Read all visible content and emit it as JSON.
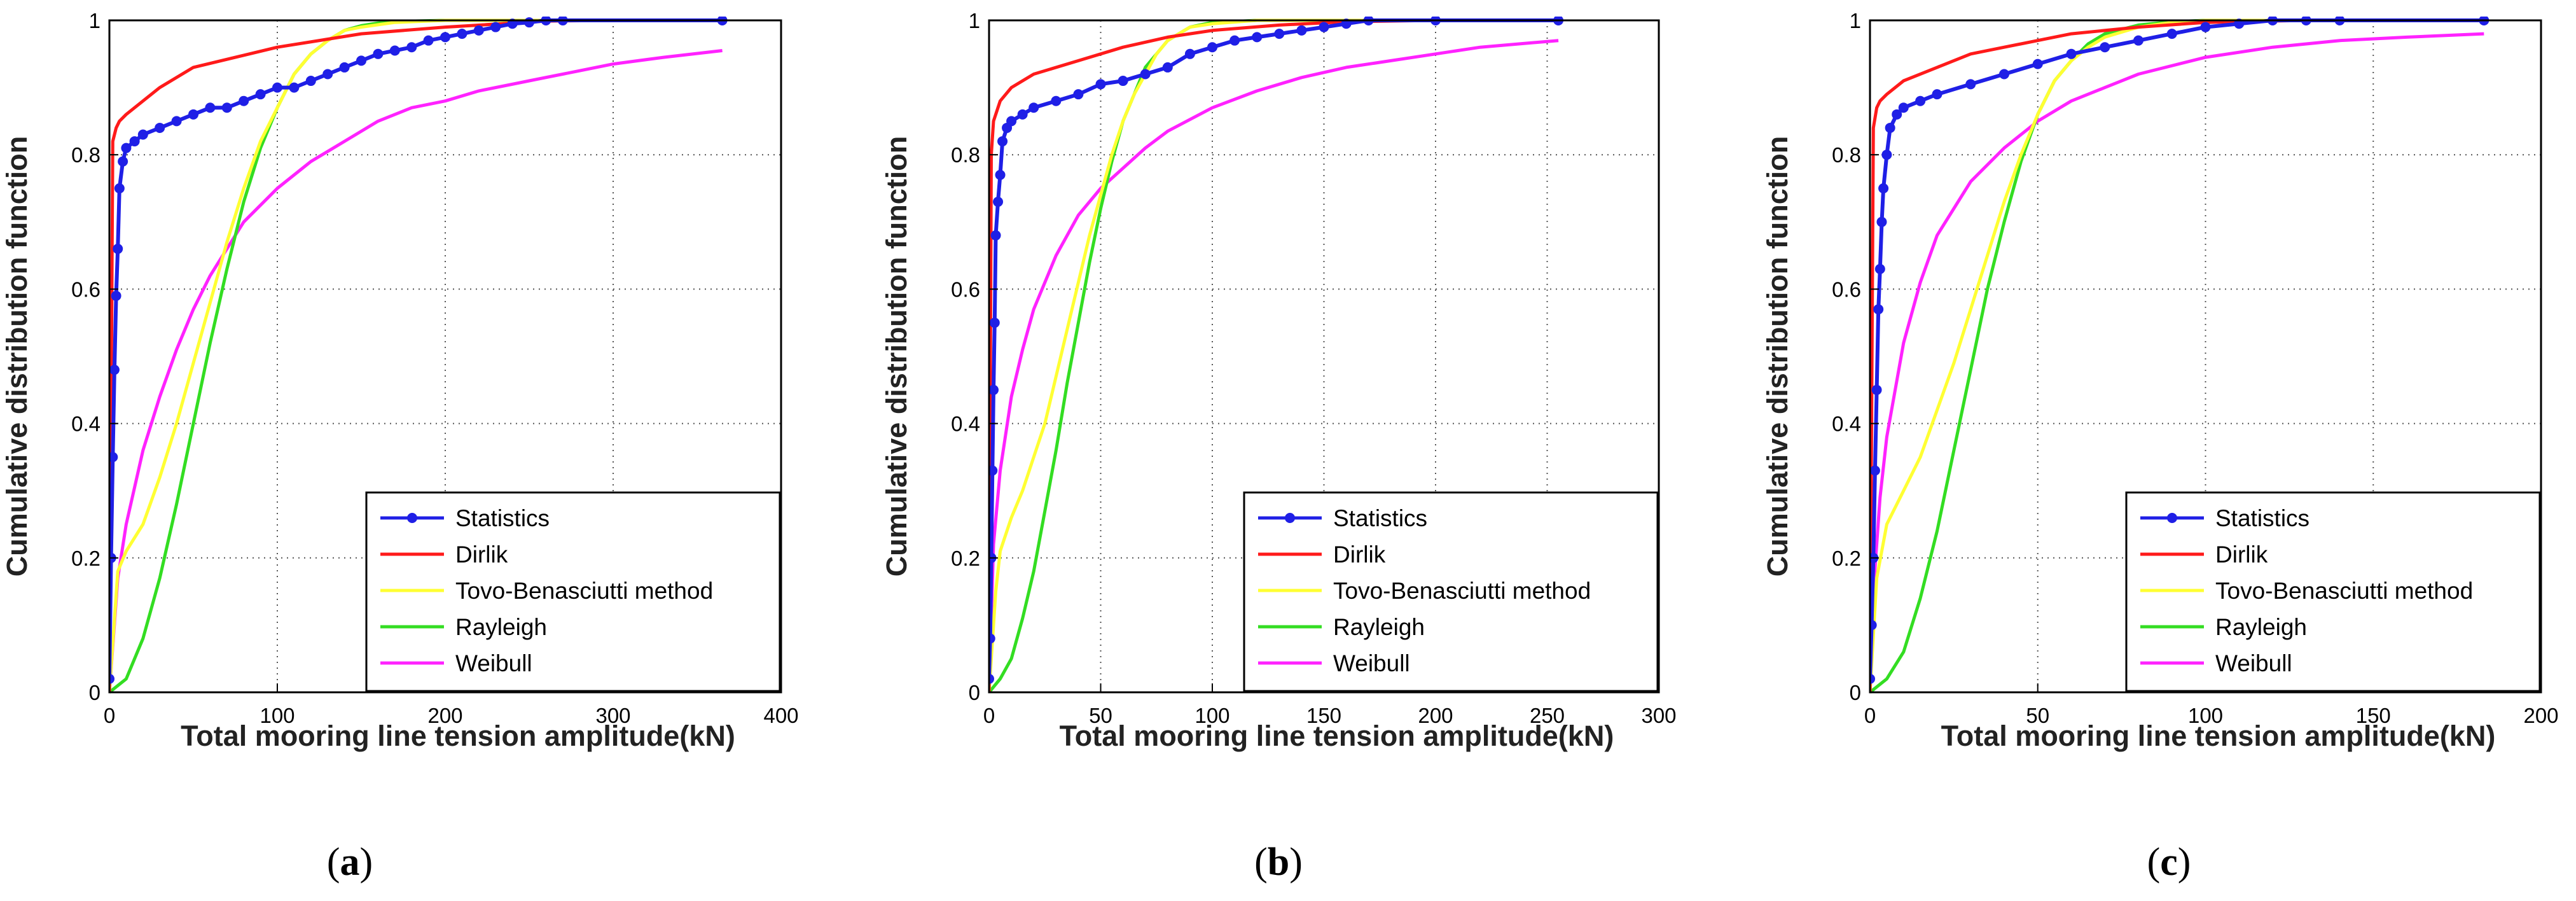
{
  "colors": {
    "Statistics": "#1f1fe6",
    "Dirlik": "#ff1a1a",
    "Tovo-Benasciutti method": "#ffff33",
    "Rayleigh": "#33dd22",
    "Weibull": "#ff22ff"
  },
  "chart_data": [
    {
      "type": "line",
      "caption_letter": "a",
      "xlabel": "Total mooring line tension amplitude(kN)",
      "ylabel": "Cumulative distribution function",
      "xlim": [
        0,
        400
      ],
      "ylim": [
        0,
        1
      ],
      "xticks": [
        0,
        100,
        200,
        300,
        400
      ],
      "yticks": [
        0,
        0.2,
        0.4,
        0.6,
        0.8,
        1
      ],
      "ytick_labels": [
        "0",
        "0.2",
        "0.4",
        "0.6",
        "0.8",
        "1"
      ],
      "grid": true,
      "legend_position": "bottom-right",
      "legend": [
        "Statistics",
        "Dirlik",
        "Tovo-Benasciutti method",
        "Rayleigh",
        "Weibull"
      ],
      "series": [
        {
          "name": "Statistics",
          "marker": true,
          "x": [
            0,
            1,
            2,
            3,
            4,
            5,
            6,
            8,
            10,
            15,
            20,
            30,
            40,
            50,
            60,
            70,
            80,
            90,
            100,
            110,
            120,
            130,
            140,
            150,
            160,
            170,
            180,
            190,
            200,
            210,
            220,
            230,
            240,
            250,
            260,
            270,
            365
          ],
          "y": [
            0.02,
            0.2,
            0.35,
            0.48,
            0.59,
            0.66,
            0.75,
            0.79,
            0.81,
            0.82,
            0.83,
            0.84,
            0.85,
            0.86,
            0.87,
            0.87,
            0.88,
            0.89,
            0.9,
            0.9,
            0.91,
            0.92,
            0.93,
            0.94,
            0.95,
            0.955,
            0.96,
            0.97,
            0.975,
            0.98,
            0.985,
            0.99,
            0.995,
            0.997,
            1.0,
            1.0,
            1.0
          ]
        },
        {
          "name": "Dirlik",
          "x": [
            0,
            2,
            4,
            6,
            10,
            20,
            30,
            50,
            75,
            100,
            150,
            200,
            260,
            300,
            365
          ],
          "y": [
            0,
            0.82,
            0.84,
            0.85,
            0.86,
            0.88,
            0.9,
            0.93,
            0.945,
            0.96,
            0.98,
            0.99,
            0.999,
            1.0,
            1.0
          ]
        },
        {
          "name": "Tovo-Benasciutti method",
          "x": [
            0,
            5,
            10,
            20,
            30,
            40,
            50,
            60,
            70,
            80,
            90,
            100,
            110,
            120,
            130,
            140,
            150,
            170,
            200,
            250,
            365
          ],
          "y": [
            0,
            0.18,
            0.21,
            0.25,
            0.32,
            0.4,
            0.49,
            0.58,
            0.67,
            0.75,
            0.82,
            0.87,
            0.92,
            0.95,
            0.97,
            0.985,
            0.99,
            0.997,
            1.0,
            1.0,
            1.0
          ]
        },
        {
          "name": "Rayleigh",
          "x": [
            0,
            10,
            20,
            30,
            40,
            50,
            60,
            70,
            80,
            90,
            100,
            110,
            120,
            130,
            140,
            150,
            160,
            170,
            180,
            200,
            250,
            365
          ],
          "y": [
            0,
            0.02,
            0.08,
            0.17,
            0.28,
            0.4,
            0.52,
            0.63,
            0.73,
            0.81,
            0.87,
            0.92,
            0.95,
            0.97,
            0.985,
            0.992,
            0.996,
            0.998,
            0.999,
            1.0,
            1.0,
            1.0
          ]
        },
        {
          "name": "Weibull",
          "x": [
            0,
            5,
            10,
            20,
            30,
            40,
            50,
            60,
            70,
            80,
            100,
            120,
            140,
            160,
            180,
            200,
            220,
            250,
            280,
            300,
            330,
            365
          ],
          "y": [
            0,
            0.17,
            0.25,
            0.36,
            0.44,
            0.51,
            0.57,
            0.62,
            0.66,
            0.7,
            0.75,
            0.79,
            0.82,
            0.85,
            0.87,
            0.88,
            0.895,
            0.91,
            0.925,
            0.935,
            0.945,
            0.955
          ]
        }
      ]
    },
    {
      "type": "line",
      "caption_letter": "b",
      "xlabel": "Total mooring line tension amplitude(kN)",
      "ylabel": "Cumulative distribution function",
      "xlim": [
        0,
        300
      ],
      "ylim": [
        0,
        1
      ],
      "xticks": [
        0,
        50,
        100,
        150,
        200,
        250,
        300
      ],
      "yticks": [
        0,
        0.2,
        0.4,
        0.6,
        0.8,
        1
      ],
      "ytick_labels": [
        "0",
        "0.2",
        "0.4",
        "0.6",
        "0.8",
        "1"
      ],
      "grid": true,
      "legend_position": "bottom-right",
      "legend": [
        "Statistics",
        "Dirlik",
        "Tovo-Benasciutti method",
        "Rayleigh",
        "Weibull"
      ],
      "series": [
        {
          "name": "Statistics",
          "marker": true,
          "x": [
            0,
            0.5,
            1,
            1.5,
            2,
            2.5,
            3,
            4,
            5,
            6,
            8,
            10,
            15,
            20,
            30,
            40,
            50,
            60,
            70,
            80,
            90,
            100,
            110,
            120,
            130,
            140,
            150,
            160,
            170,
            200,
            255
          ],
          "y": [
            0.02,
            0.08,
            0.2,
            0.33,
            0.45,
            0.55,
            0.68,
            0.73,
            0.77,
            0.82,
            0.84,
            0.85,
            0.86,
            0.87,
            0.88,
            0.89,
            0.905,
            0.91,
            0.92,
            0.93,
            0.95,
            0.96,
            0.97,
            0.975,
            0.98,
            0.985,
            0.99,
            0.995,
            1.0,
            1.0,
            1.0
          ]
        },
        {
          "name": "Dirlik",
          "x": [
            0,
            1,
            2,
            3,
            5,
            10,
            20,
            40,
            60,
            80,
            100,
            130,
            160,
            200,
            255
          ],
          "y": [
            0,
            0.8,
            0.85,
            0.86,
            0.88,
            0.9,
            0.92,
            0.94,
            0.96,
            0.975,
            0.985,
            0.993,
            0.998,
            1.0,
            1.0
          ]
        },
        {
          "name": "Tovo-Benasciutti method",
          "x": [
            0,
            3,
            5,
            10,
            15,
            20,
            25,
            30,
            35,
            40,
            45,
            50,
            55,
            60,
            65,
            70,
            75,
            80,
            85,
            90,
            100,
            120,
            150,
            255
          ],
          "y": [
            0,
            0.15,
            0.21,
            0.26,
            0.3,
            0.35,
            0.4,
            0.47,
            0.54,
            0.61,
            0.68,
            0.74,
            0.8,
            0.85,
            0.89,
            0.92,
            0.95,
            0.97,
            0.98,
            0.99,
            0.995,
            1.0,
            1.0,
            1.0
          ]
        },
        {
          "name": "Rayleigh",
          "x": [
            0,
            5,
            10,
            15,
            20,
            25,
            30,
            35,
            40,
            45,
            50,
            55,
            60,
            65,
            70,
            75,
            80,
            85,
            90,
            100,
            120,
            150,
            255
          ],
          "y": [
            0,
            0.02,
            0.05,
            0.11,
            0.18,
            0.27,
            0.36,
            0.46,
            0.55,
            0.64,
            0.72,
            0.79,
            0.85,
            0.89,
            0.93,
            0.95,
            0.97,
            0.98,
            0.99,
            0.997,
            1.0,
            1.0,
            1.0
          ]
        },
        {
          "name": "Weibull",
          "x": [
            0,
            2,
            5,
            10,
            15,
            20,
            30,
            40,
            50,
            60,
            70,
            80,
            100,
            120,
            140,
            160,
            180,
            200,
            220,
            255
          ],
          "y": [
            0,
            0.22,
            0.33,
            0.44,
            0.51,
            0.57,
            0.65,
            0.71,
            0.75,
            0.78,
            0.81,
            0.835,
            0.87,
            0.895,
            0.915,
            0.93,
            0.94,
            0.95,
            0.96,
            0.97
          ]
        }
      ]
    },
    {
      "type": "line",
      "caption_letter": "c",
      "xlabel": "Total mooring line tension amplitude(kN)",
      "ylabel": "Cumulative distribution function",
      "xlim": [
        0,
        200
      ],
      "ylim": [
        0,
        1
      ],
      "xticks": [
        0,
        50,
        100,
        150,
        200
      ],
      "yticks": [
        0,
        0.2,
        0.4,
        0.6,
        0.8,
        1
      ],
      "ytick_labels": [
        "0",
        "0.2",
        "0.4",
        "0.6",
        "0.8",
        "1"
      ],
      "grid": true,
      "legend_position": "bottom-right",
      "legend": [
        "Statistics",
        "Dirlik",
        "Tovo-Benasciutti method",
        "Rayleigh",
        "Weibull"
      ],
      "series": [
        {
          "name": "Statistics",
          "marker": true,
          "x": [
            0,
            0.5,
            1,
            1.5,
            2,
            2.5,
            3,
            3.5,
            4,
            5,
            6,
            8,
            10,
            15,
            20,
            30,
            40,
            50,
            60,
            70,
            80,
            90,
            100,
            110,
            120,
            130,
            140,
            183
          ],
          "y": [
            0.02,
            0.1,
            0.2,
            0.33,
            0.45,
            0.57,
            0.63,
            0.7,
            0.75,
            0.8,
            0.84,
            0.86,
            0.87,
            0.88,
            0.89,
            0.905,
            0.92,
            0.935,
            0.95,
            0.96,
            0.97,
            0.98,
            0.99,
            0.995,
            1.0,
            1.0,
            1.0,
            1.0
          ]
        },
        {
          "name": "Dirlik",
          "x": [
            0,
            1,
            2,
            3,
            5,
            10,
            20,
            30,
            40,
            60,
            80,
            100,
            130,
            183
          ],
          "y": [
            0,
            0.84,
            0.87,
            0.88,
            0.89,
            0.91,
            0.93,
            0.95,
            0.96,
            0.98,
            0.99,
            0.997,
            1.0,
            1.0
          ]
        },
        {
          "name": "Tovo-Benasciutti method",
          "x": [
            0,
            2,
            5,
            10,
            15,
            20,
            25,
            30,
            35,
            40,
            45,
            50,
            55,
            60,
            65,
            70,
            80,
            90,
            100,
            120,
            183
          ],
          "y": [
            0,
            0.17,
            0.25,
            0.3,
            0.35,
            0.42,
            0.49,
            0.57,
            0.65,
            0.73,
            0.8,
            0.86,
            0.91,
            0.94,
            0.96,
            0.975,
            0.99,
            0.997,
            1.0,
            1.0,
            1.0
          ]
        },
        {
          "name": "Rayleigh",
          "x": [
            0,
            5,
            10,
            15,
            20,
            25,
            30,
            35,
            40,
            45,
            50,
            55,
            60,
            65,
            70,
            80,
            90,
            100,
            120,
            183
          ],
          "y": [
            0,
            0.02,
            0.06,
            0.14,
            0.24,
            0.36,
            0.48,
            0.6,
            0.7,
            0.79,
            0.86,
            0.91,
            0.94,
            0.965,
            0.98,
            0.993,
            0.998,
            1.0,
            1.0,
            1.0
          ]
        },
        {
          "name": "Weibull",
          "x": [
            0,
            1,
            3,
            5,
            10,
            15,
            20,
            30,
            40,
            50,
            60,
            70,
            80,
            100,
            120,
            140,
            160,
            183
          ],
          "y": [
            0,
            0.15,
            0.29,
            0.38,
            0.52,
            0.61,
            0.68,
            0.76,
            0.81,
            0.85,
            0.88,
            0.9,
            0.92,
            0.945,
            0.96,
            0.97,
            0.975,
            0.98
          ]
        }
      ]
    }
  ]
}
